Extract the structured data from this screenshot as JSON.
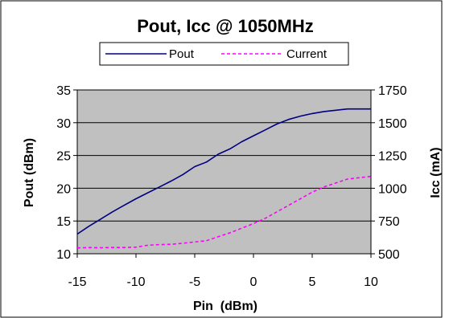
{
  "chart_data": {
    "type": "line",
    "title": "Pout, Icc @ 1050MHz",
    "xlabel": "Pin  (dBm)",
    "ylabel": "Pout (dBm)",
    "y2label": "Icc (mA)",
    "xlim": [
      -15,
      10
    ],
    "ylim": [
      10,
      35
    ],
    "y2lim": [
      500,
      1750
    ],
    "x_ticks": [
      "-15",
      "-10",
      "-5",
      "0",
      "5",
      "10"
    ],
    "y_ticks": [
      "10",
      "15",
      "20",
      "25",
      "30",
      "35"
    ],
    "y2_ticks": [
      "500",
      "750",
      "1000",
      "1250",
      "1500",
      "1750"
    ],
    "grid": true,
    "plot_background": "#c0c0c0",
    "legend": {
      "placement": "top",
      "entries": [
        "Pout",
        "Current"
      ]
    },
    "series": [
      {
        "name": "Pout",
        "axis": "left",
        "color": "#000080",
        "style": "solid",
        "x": [
          -15,
          -14,
          -13,
          -12,
          -11,
          -10,
          -9,
          -8,
          -7,
          -6,
          -5,
          -4,
          -3,
          -2,
          -1,
          0,
          1,
          2,
          3,
          4,
          5,
          6,
          7,
          8,
          9,
          10
        ],
        "values": [
          13,
          14.2,
          15.3,
          16.4,
          17.4,
          18.4,
          19.3,
          20.2,
          21.1,
          22.1,
          23.3,
          24.0,
          25.2,
          26.0,
          27.1,
          28.0,
          28.9,
          29.8,
          30.5,
          31.0,
          31.4,
          31.7,
          31.9,
          32.1,
          32.1,
          32.1
        ]
      },
      {
        "name": "Current",
        "axis": "right",
        "color": "#ff00ff",
        "style": "dashed",
        "x": [
          -15,
          -14,
          -13,
          -12,
          -11,
          -10,
          -9,
          -8,
          -7,
          -6,
          -5,
          -4,
          -3,
          -2,
          -1,
          0,
          1,
          2,
          3,
          4,
          5,
          6,
          7,
          8,
          9,
          10
        ],
        "values": [
          545,
          547,
          546,
          548,
          548,
          550,
          565,
          570,
          572,
          580,
          590,
          600,
          630,
          660,
          695,
          730,
          770,
          820,
          870,
          920,
          970,
          1010,
          1040,
          1070,
          1080,
          1090
        ]
      }
    ]
  }
}
